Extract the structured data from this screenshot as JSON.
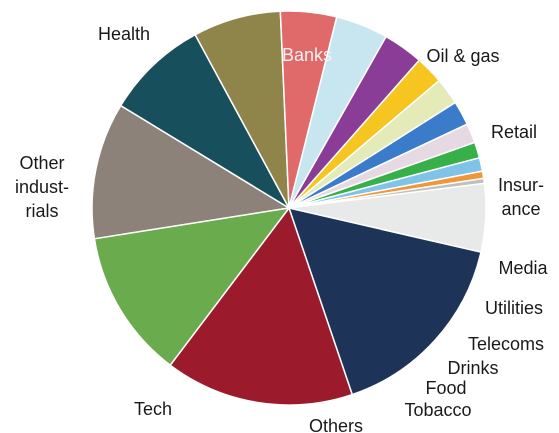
{
  "chart_data": {
    "type": "pie",
    "title": "",
    "slices": [
      {
        "label": "Banks",
        "value": 11.2,
        "color": "#8c8279"
      },
      {
        "label": "Oil & gas",
        "value": 8.4,
        "color": "#17505c"
      },
      {
        "label": "Retail",
        "value": 7.2,
        "color": "#8f8449"
      },
      {
        "label": "Insur-\nance",
        "value": 4.6,
        "color": "#e06a6a"
      },
      {
        "label": "Media",
        "value": 4.3,
        "color": "#c8e6f0"
      },
      {
        "label": "Utilities",
        "value": 3.3,
        "color": "#8a3d96"
      },
      {
        "label": "Telecoms",
        "value": 2.3,
        "color": "#f6c51f"
      },
      {
        "label": "Drinks",
        "value": 2.2,
        "color": "#e4ebb8"
      },
      {
        "label": "Food",
        "value": 2.0,
        "color": "#3a7cc9"
      },
      {
        "label": "Tobacco",
        "value": 1.6,
        "color": "#e6d9e3"
      },
      {
        "label": "",
        "value": 1.3,
        "color": "#38b049"
      },
      {
        "label": "",
        "value": 1.1,
        "color": "#7fc3e8"
      },
      {
        "label": "",
        "value": 0.6,
        "color": "#f0973a"
      },
      {
        "label": "",
        "value": 0.4,
        "color": "#bfbfbf"
      },
      {
        "label": "Others",
        "value": 5.6,
        "color": "#e8eaea"
      },
      {
        "label": "Tech",
        "value": 16.2,
        "color": "#1d3358"
      },
      {
        "label": "Other\nindust-\nrials",
        "value": 15.5,
        "color": "#9b1b2d"
      },
      {
        "label": "Health",
        "value": 12.2,
        "color": "#6aab4e"
      }
    ]
  }
}
